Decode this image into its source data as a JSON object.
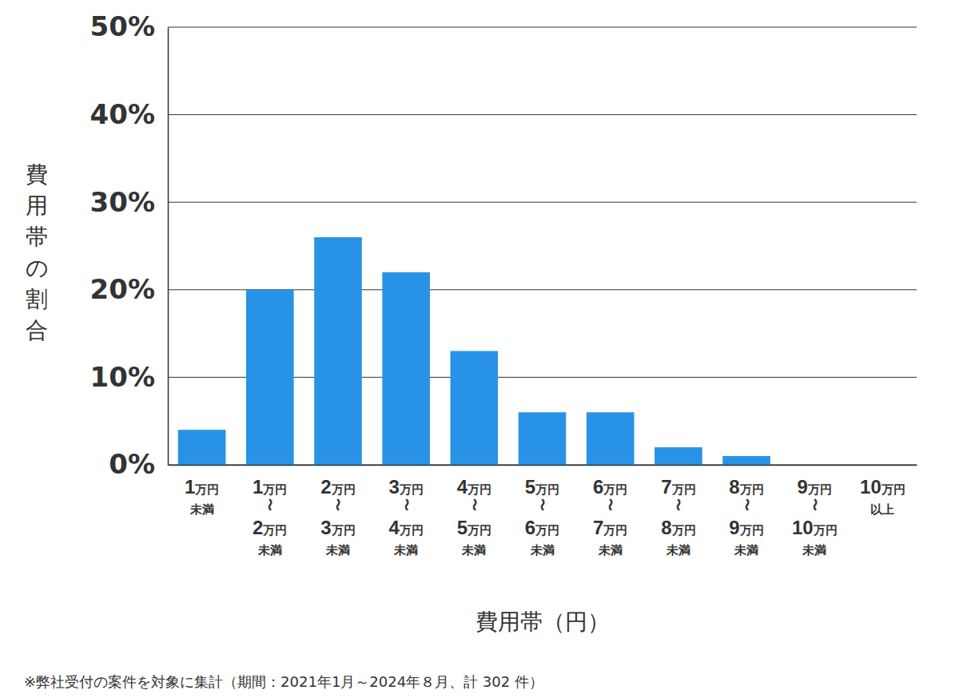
{
  "chart_data": {
    "type": "bar",
    "x_label": "費用帯（円）",
    "y_label": "費用帯の割合",
    "annotations": [
      "※弊社受付の案件を対象に集計（期間：2021年1月～2024年８月、計 302 件）"
    ],
    "categories": [
      "1万円未満",
      "1万円〜2万円未満",
      "2万円〜3万円未満",
      "3万円〜4万円未満",
      "4万円〜5万円未満",
      "5万円〜6万円未満",
      "6万円〜7万円未満",
      "7万円〜8万円未満",
      "8万円〜9万円未満",
      "9万円〜10万円未満",
      "10万円以上"
    ],
    "values": [
      4,
      20,
      26,
      22,
      13,
      6,
      6,
      2,
      1,
      0,
      0
    ],
    "color": "#2893e6",
    "ylim": [
      0,
      50
    ],
    "yticks": [
      {
        "value": 0,
        "label": "0%"
      },
      {
        "value": 10,
        "label": "10%"
      },
      {
        "value": 20,
        "label": "20%"
      },
      {
        "value": 30,
        "label": "30%"
      },
      {
        "value": 40,
        "label": "40%"
      },
      {
        "value": 50,
        "label": "50%"
      }
    ],
    "grid": true
  }
}
